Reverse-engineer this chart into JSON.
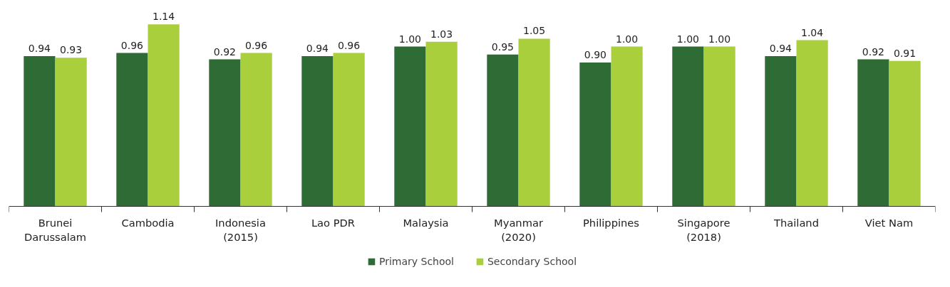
{
  "chart_data": {
    "type": "bar",
    "categories": [
      "Brunei\nDarussalam",
      "Cambodia",
      "Indonesia\n(2015)",
      "Lao PDR",
      "Malaysia",
      "Myanmar\n(2020)",
      "Philippines",
      "Singapore\n(2018)",
      "Thailand",
      "Viet Nam"
    ],
    "series": [
      {
        "name": "Primary School",
        "color": "#2e6b35",
        "values": [
          0.94,
          0.96,
          0.92,
          0.94,
          1.0,
          0.95,
          0.9,
          1.0,
          0.94,
          0.92
        ],
        "value_labels": [
          "0.94",
          "0.96",
          "0.92",
          "0.94",
          "1.00",
          "0.95",
          "0.90",
          "1.00",
          "0.94",
          "0.92"
        ]
      },
      {
        "name": "Secondary School",
        "color": "#aacf3c",
        "values": [
          0.93,
          1.14,
          0.96,
          0.96,
          1.03,
          1.05,
          1.0,
          1.0,
          1.04,
          0.91
        ],
        "value_labels": [
          "0.93",
          "1.14",
          "0.96",
          "0.96",
          "1.03",
          "1.05",
          "1.00",
          "1.00",
          "1.04",
          "0.91"
        ]
      }
    ],
    "legend": "bottom",
    "grid": false,
    "tick_labels": "x"
  }
}
